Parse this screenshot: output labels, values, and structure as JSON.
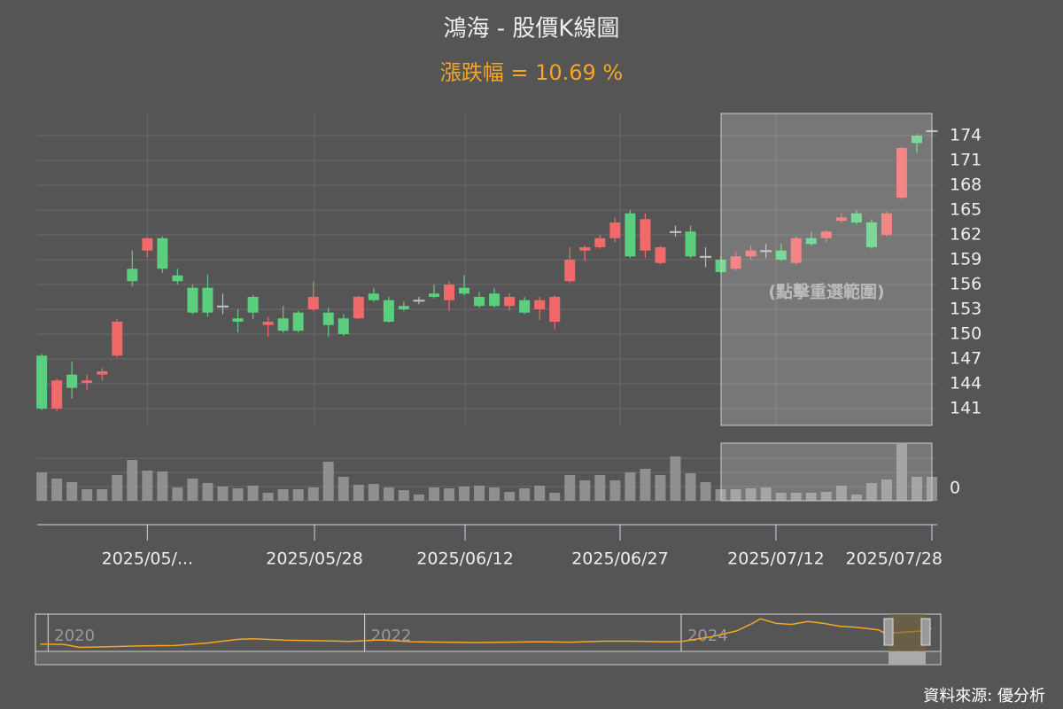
{
  "chart_data": [
    {
      "type": "candlestick",
      "title": "鴻海 - 股價K線圖",
      "subtitle": "漲跌幅 = 10.69 %",
      "annotation": "(點擊重選範圍)",
      "up_color": "#f06a6a",
      "down_color": "#5ccf7f",
      "flat_color": "#bbbbbb",
      "grid": true,
      "open": [
        147.4,
        141.0,
        145.1,
        144.1,
        145.1,
        147.4,
        157.9,
        160.1,
        161.6,
        157.1,
        155.6,
        155.6,
        153.4,
        151.9,
        154.5,
        151.1,
        151.9,
        152.6,
        153.0,
        152.6,
        151.9,
        151.9,
        154.9,
        154.1,
        153.4,
        154.1,
        154.9,
        154.1,
        155.6,
        154.5,
        154.9,
        153.4,
        154.1,
        153.0,
        151.5,
        156.4,
        160.1,
        160.5,
        161.6,
        164.6,
        160.1,
        158.6,
        162.4,
        162.4,
        159.4,
        159.0,
        157.9,
        159.4,
        160.1,
        160.1,
        158.6,
        161.6,
        161.6,
        163.7,
        164.6,
        163.5,
        162.0,
        166.5,
        174.0,
        174.6
      ],
      "high": [
        147.6,
        144.6,
        146.7,
        145.1,
        145.9,
        151.8,
        160.1,
        161.8,
        161.8,
        157.9,
        156.0,
        157.2,
        154.9,
        153.0,
        154.7,
        152.1,
        153.4,
        152.8,
        156.4,
        153.2,
        152.4,
        154.7,
        155.6,
        154.5,
        153.9,
        154.5,
        156.0,
        156.4,
        157.1,
        155.1,
        155.6,
        154.9,
        154.5,
        154.5,
        154.7,
        160.5,
        160.7,
        162.0,
        164.1,
        165.0,
        164.6,
        160.7,
        163.1,
        163.1,
        160.5,
        159.4,
        159.9,
        160.7,
        160.9,
        160.9,
        161.8,
        162.4,
        162.6,
        164.6,
        165.0,
        163.9,
        164.8,
        172.7,
        174.2,
        174.9
      ],
      "low": [
        140.8,
        140.7,
        142.2,
        143.3,
        144.4,
        147.2,
        155.8,
        159.3,
        157.4,
        156.0,
        152.4,
        152.1,
        152.4,
        150.2,
        151.8,
        149.7,
        150.2,
        150.2,
        152.8,
        149.7,
        149.8,
        151.8,
        153.9,
        151.4,
        152.8,
        153.6,
        154.3,
        152.8,
        154.7,
        153.2,
        153.2,
        152.8,
        152.4,
        151.7,
        150.6,
        156.2,
        158.8,
        160.3,
        161.1,
        159.2,
        159.2,
        158.4,
        161.8,
        159.2,
        158.1,
        157.3,
        157.7,
        159.0,
        159.2,
        158.8,
        158.4,
        160.7,
        161.1,
        163.5,
        163.3,
        160.3,
        161.8,
        166.3,
        171.9,
        174.4
      ],
      "close": [
        141.0,
        144.4,
        143.5,
        144.4,
        145.5,
        151.5,
        156.4,
        161.6,
        157.9,
        156.4,
        152.6,
        152.6,
        153.4,
        151.5,
        152.6,
        151.5,
        150.4,
        150.4,
        154.5,
        151.1,
        150.0,
        154.5,
        154.1,
        151.5,
        153.0,
        154.1,
        154.5,
        156.0,
        154.9,
        153.4,
        153.4,
        154.5,
        152.6,
        154.1,
        154.5,
        159.0,
        160.5,
        161.6,
        163.5,
        159.4,
        163.9,
        160.5,
        162.4,
        159.4,
        159.4,
        157.5,
        159.4,
        160.1,
        160.1,
        159.0,
        161.6,
        160.9,
        162.4,
        164.1,
        163.5,
        160.5,
        164.6,
        172.5,
        173.1,
        174.6
      ],
      "xlim": [
        -0.3,
        59.35
      ],
      "xticks": [
        {
          "value": 7,
          "label": "2025/05/..."
        },
        {
          "value": 18.08,
          "label": "2025/05/28"
        },
        {
          "value": 28.06,
          "label": "2025/06/12"
        },
        {
          "value": 38.33,
          "label": "2025/06/27"
        },
        {
          "value": 48.66,
          "label": "2025/07/12"
        },
        {
          "value": 59.0,
          "label": "2025/07/28"
        }
      ],
      "ylim": [
        138.96,
        176.68
      ],
      "yticks": [
        141,
        144,
        147,
        150,
        153,
        156,
        159,
        162,
        165,
        168,
        171,
        174
      ]
    },
    {
      "type": "bar",
      "color": "#9a9a9a",
      "values": [
        32,
        25,
        21,
        13,
        13,
        29,
        46,
        34,
        33,
        15,
        25,
        20,
        16,
        14,
        17,
        9,
        13,
        13,
        15,
        44,
        27,
        18,
        19,
        15,
        12,
        7,
        15,
        14,
        16,
        17,
        15,
        10,
        14,
        17,
        9,
        29,
        23,
        29,
        23,
        32,
        36,
        29,
        50,
        31,
        21,
        13,
        13,
        14,
        15,
        9,
        9,
        9,
        10,
        17,
        7,
        20,
        24,
        64,
        27,
        27
      ],
      "ylim": [
        0,
        65
      ],
      "yticks": [
        0
      ]
    },
    {
      "type": "line",
      "color": "#f5a623",
      "x": [
        2019.95,
        2020.1,
        2020.2,
        2020.4,
        2020.6,
        2020.8,
        2021.0,
        2021.2,
        2021.3,
        2021.5,
        2021.7,
        2021.9,
        2022.1,
        2022.3,
        2022.5,
        2022.7,
        2022.9,
        2023.1,
        2023.3,
        2023.5,
        2023.7,
        2023.9,
        2024.0,
        2024.2,
        2024.35,
        2024.45,
        2024.5,
        2024.6,
        2024.7,
        2024.8,
        2024.9,
        2025.0,
        2025.1,
        2025.2,
        2025.25,
        2025.3,
        2025.35,
        2025.45,
        2025.55,
        2025.58
      ],
      "values": [
        90,
        88,
        72,
        76,
        80,
        82,
        95,
        115,
        118,
        110,
        108,
        104,
        112,
        102,
        100,
        98,
        100,
        102,
        100,
        105,
        105,
        102,
        103,
        130,
        160,
        200,
        225,
        200,
        195,
        210,
        200,
        185,
        180,
        170,
        165,
        140,
        150,
        155,
        162,
        174
      ],
      "xlim": [
        2019.92,
        2025.64
      ],
      "xticks": [
        2020,
        2022,
        2024
      ],
      "ylim": [
        60,
        240
      ]
    }
  ],
  "footer": {
    "source": "資料來源: 優分析"
  }
}
